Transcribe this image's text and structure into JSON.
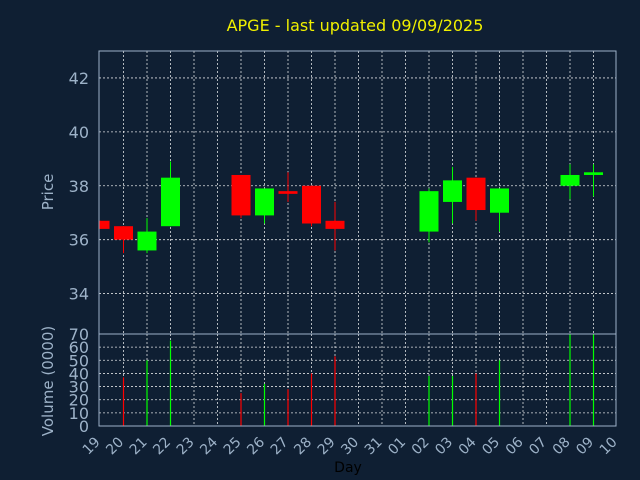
{
  "chart_data": {
    "type": "candlestick",
    "title": "APGE - last updated 09/09/2025",
    "xlabel": "Day",
    "price_ylabel": "Price",
    "volume_ylabel": "Volume (0000)",
    "price_ylim": [
      32.5,
      43
    ],
    "price_yticks": [
      34,
      36,
      38,
      40,
      42
    ],
    "volume_ylim": [
      0,
      70
    ],
    "volume_yticks": [
      0,
      10,
      20,
      30,
      40,
      50,
      60,
      70
    ],
    "x_tick_labels": [
      "19",
      "20",
      "21",
      "22",
      "23",
      "24",
      "25",
      "26",
      "27",
      "28",
      "29",
      "30",
      "31",
      "01",
      "02",
      "03",
      "04",
      "05",
      "06",
      "07",
      "08",
      "09",
      "10"
    ],
    "up_color": "#00ff00",
    "down_color": "#ff0000",
    "grid": true,
    "candles": [
      {
        "day": "19",
        "open": 36.7,
        "high": 36.7,
        "low": 36.4,
        "close": 36.4
      },
      {
        "day": "20",
        "open": 36.5,
        "high": 36.5,
        "low": 35.5,
        "close": 36.0
      },
      {
        "day": "21",
        "open": 35.6,
        "high": 36.8,
        "low": 35.5,
        "close": 36.3
      },
      {
        "day": "22",
        "open": 36.5,
        "high": 38.9,
        "low": 36.5,
        "close": 38.3
      },
      {
        "day": "25",
        "open": 38.4,
        "high": 38.4,
        "low": 36.8,
        "close": 36.9
      },
      {
        "day": "26",
        "open": 36.9,
        "high": 37.9,
        "low": 36.6,
        "close": 37.9
      },
      {
        "day": "27",
        "open": 37.8,
        "high": 38.5,
        "low": 37.4,
        "close": 37.7
      },
      {
        "day": "28",
        "open": 38.0,
        "high": 38.0,
        "low": 36.5,
        "close": 36.6
      },
      {
        "day": "29",
        "open": 36.7,
        "high": 37.4,
        "low": 35.6,
        "close": 36.4
      },
      {
        "day": "02",
        "open": 36.3,
        "high": 37.9,
        "low": 35.9,
        "close": 37.8
      },
      {
        "day": "03",
        "open": 37.4,
        "high": 38.7,
        "low": 36.6,
        "close": 38.2
      },
      {
        "day": "04",
        "open": 38.3,
        "high": 38.3,
        "low": 36.7,
        "close": 37.1
      },
      {
        "day": "05",
        "open": 37.0,
        "high": 37.9,
        "low": 36.3,
        "close": 37.9
      },
      {
        "day": "08",
        "open": 38.0,
        "high": 38.8,
        "low": 37.5,
        "close": 38.4
      },
      {
        "day": "09",
        "open": 38.4,
        "high": 38.8,
        "low": 37.6,
        "close": 38.5
      }
    ],
    "volume": [
      {
        "day": "20",
        "value": 37,
        "direction": "down"
      },
      {
        "day": "21",
        "value": 50,
        "direction": "up"
      },
      {
        "day": "22",
        "value": 65,
        "direction": "up"
      },
      {
        "day": "25",
        "value": 25,
        "direction": "down"
      },
      {
        "day": "26",
        "value": 32,
        "direction": "up"
      },
      {
        "day": "27",
        "value": 28,
        "direction": "down"
      },
      {
        "day": "28",
        "value": 40,
        "direction": "down"
      },
      {
        "day": "29",
        "value": 53,
        "direction": "down"
      },
      {
        "day": "02",
        "value": 38,
        "direction": "up"
      },
      {
        "day": "03",
        "value": 38,
        "direction": "up"
      },
      {
        "day": "04",
        "value": 40,
        "direction": "down"
      },
      {
        "day": "05",
        "value": 50,
        "direction": "up"
      },
      {
        "day": "08",
        "value": 70,
        "direction": "up"
      },
      {
        "day": "09",
        "value": 70,
        "direction": "up"
      }
    ]
  }
}
